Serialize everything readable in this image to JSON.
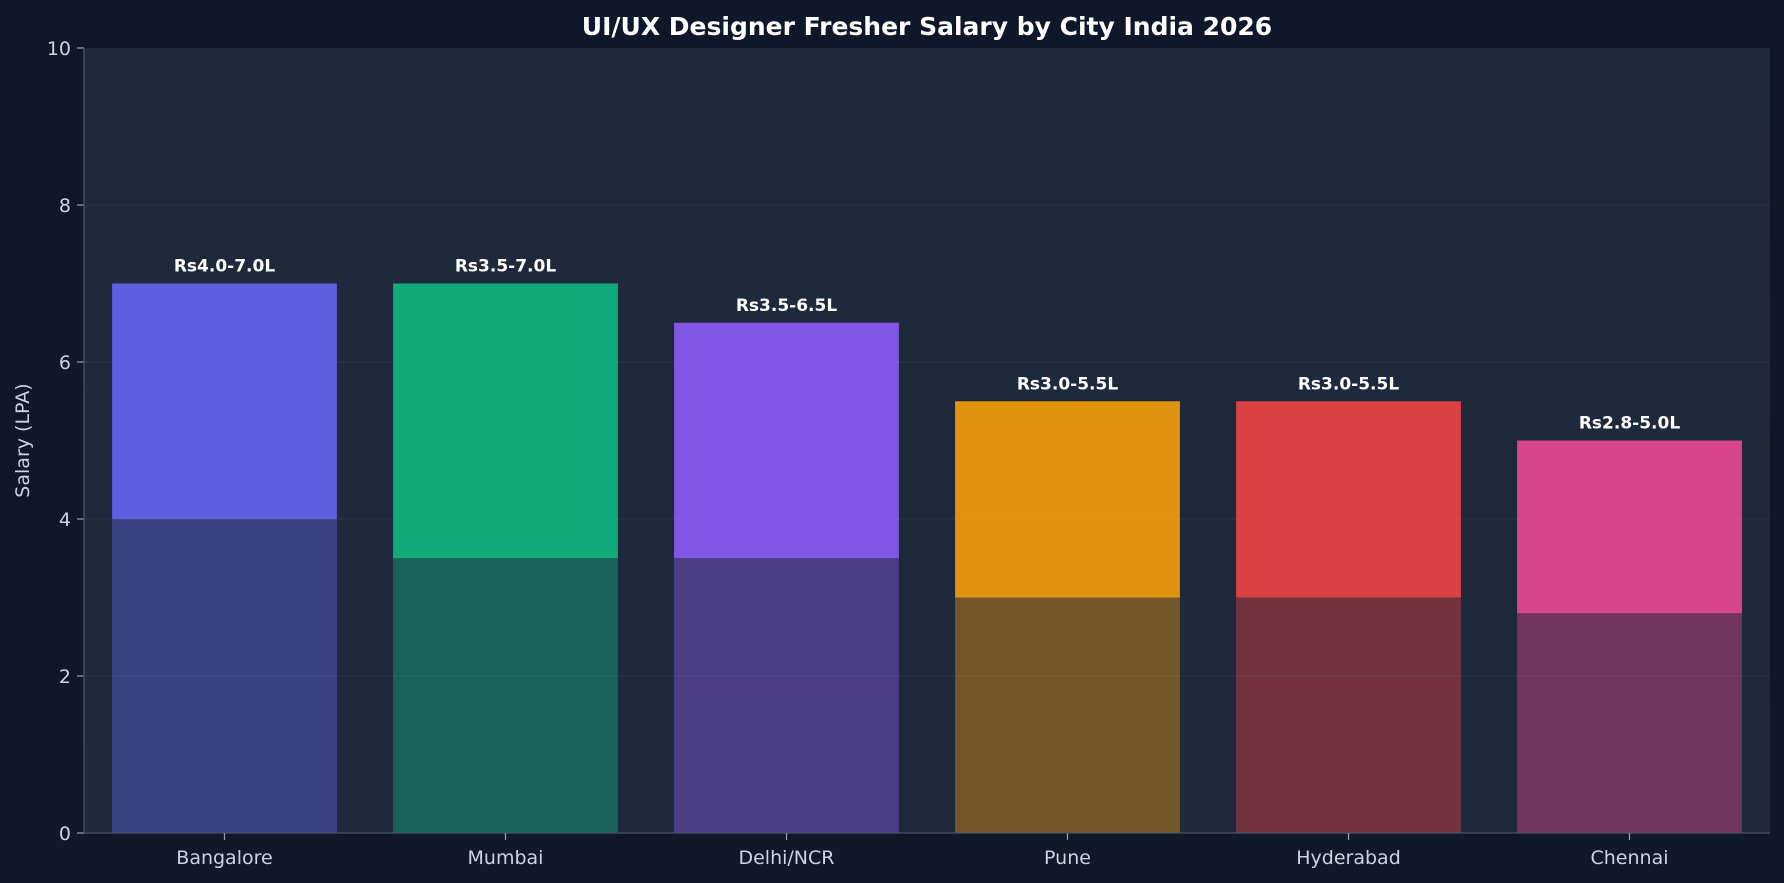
{
  "chart_data": {
    "type": "bar",
    "title": "UI/UX Designer Fresher Salary by City India 2026",
    "xlabel": "",
    "ylabel": "Salary (LPA)",
    "ylim": [
      0,
      10
    ],
    "yticks": [
      "0",
      "2",
      "4",
      "6",
      "8",
      "10"
    ],
    "grid": true,
    "categories": [
      "Bangalore",
      "Mumbai",
      "Delhi/NCR",
      "Pune",
      "Hyderabad",
      "Chennai"
    ],
    "series": [
      {
        "values": [
          4.0,
          3.5,
          3.5,
          3.0,
          3.0,
          2.8
        ]
      },
      {
        "values": [
          7.0,
          7.0,
          6.5,
          5.5,
          5.5,
          5.0
        ]
      }
    ],
    "data_labels": [
      "Rs4.0-7.0L",
      "Rs3.5-7.0L",
      "Rs3.5-6.5L",
      "Rs3.0-5.5L",
      "Rs3.0-5.5L",
      "Rs2.8-5.0L"
    ],
    "colors": [
      "#6366f1",
      "#10b981",
      "#8b5cf6",
      "#f59e0b",
      "#ef4444",
      "#ec4899"
    ],
    "background": "#1e293b",
    "page_background": "#111827"
  }
}
